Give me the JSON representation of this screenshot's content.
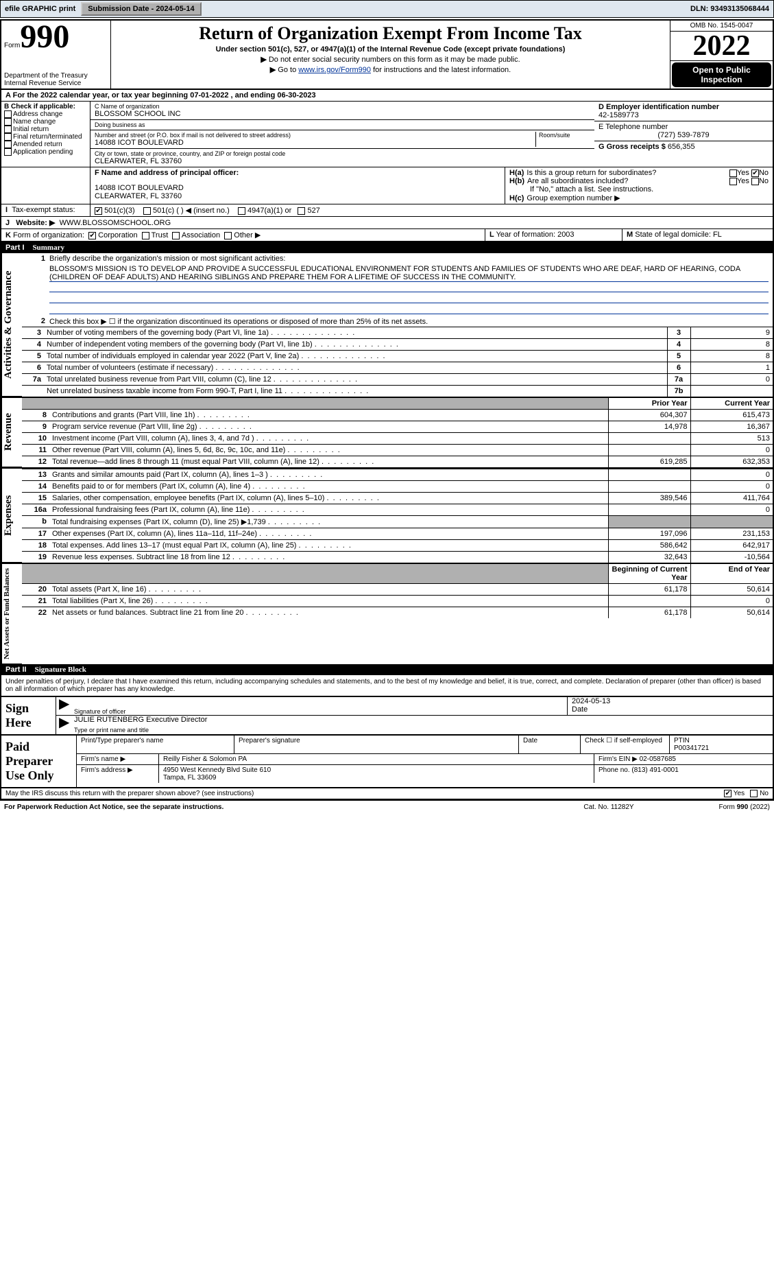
{
  "topbar": {
    "efile_label": "efile GRAPHIC print",
    "submission_button": "Submission Date - 2024-05-14",
    "dln": "DLN: 93493135068444"
  },
  "header": {
    "form_word": "Form",
    "form_number": "990",
    "title": "Return of Organization Exempt From Income Tax",
    "subtitle": "Under section 501(c), 527, or 4947(a)(1) of the Internal Revenue Code (except private foundations)",
    "note1": "Do not enter social security numbers on this form as it may be made public.",
    "note2_pre": "Go to ",
    "note2_link": "www.irs.gov/Form990",
    "note2_post": " for instructions and the latest information.",
    "dept": "Department of the Treasury\nInternal Revenue Service",
    "omb": "OMB No. 1545-0047",
    "tax_year": "2022",
    "open_public": "Open to Public Inspection"
  },
  "period": {
    "text_a": "For the 2022 calendar year, or tax year beginning 07-01-2022    , and ending 06-30-2023",
    "label_a": "A"
  },
  "section_b": {
    "header": "B Check if applicable:",
    "items": [
      "Address change",
      "Name change",
      "Initial return",
      "Final return/terminated",
      "Amended return",
      "Application pending"
    ]
  },
  "section_c": {
    "name_label": "C Name of organization",
    "name": "BLOSSOM SCHOOL INC",
    "dba_label": "Doing business as",
    "dba": "",
    "addr_label": "Number and street (or P.O. box if mail is not delivered to street address)",
    "room_label": "Room/suite",
    "addr": "14088 ICOT BOULEVARD",
    "city_label": "City or town, state or province, country, and ZIP or foreign postal code",
    "city": "CLEARWATER, FL  33760"
  },
  "section_d": {
    "ein_label": "D Employer identification number",
    "ein": "42-1589773",
    "phone_label": "E Telephone number",
    "phone": "(727) 539-7879",
    "gross_label": "G Gross receipts $",
    "gross": "656,355"
  },
  "section_f": {
    "label": "F Name and address of principal officer:",
    "addr1": "14088 ICOT BOULEVARD",
    "addr2": "CLEARWATER, FL  33760"
  },
  "section_h": {
    "a_label": "H(a)",
    "a_text": "Is this a group return for subordinates?",
    "b_label": "H(b)",
    "b_text": "Are all subordinates included?",
    "b_note": "If \"No,\" attach a list. See instructions.",
    "c_label": "H(c)",
    "c_text": "Group exemption number ▶",
    "yes": "Yes",
    "no": "No"
  },
  "row_i": {
    "label": "I",
    "text": "Tax-exempt status:",
    "opt1": "501(c)(3)",
    "opt2": "501(c) (  ) ◀ (insert no.)",
    "opt3": "4947(a)(1) or",
    "opt4": "527"
  },
  "row_j": {
    "label": "J",
    "text": "Website: ▶",
    "url": "WWW.BLOSSOMSCHOOL.ORG"
  },
  "row_k": {
    "label": "K",
    "text": "Form of organization:",
    "opts": [
      "Corporation",
      "Trust",
      "Association",
      "Other ▶"
    ],
    "l_label": "L",
    "l_text": "Year of formation: 2003",
    "m_label": "M",
    "m_text": "State of legal domicile: FL"
  },
  "part1": {
    "part": "Part I",
    "name": "Summary"
  },
  "summary": {
    "line1_label": "1",
    "line1_text": "Briefly describe the organization's mission or most significant activities:",
    "mission": "BLOSSOM'S MISSION IS TO DEVELOP AND PROVIDE A SUCCESSFUL EDUCATIONAL ENVIRONMENT FOR STUDENTS AND FAMILIES OF STUDENTS WHO ARE DEAF, HARD OF HEARING, CODA (CHILDREN OF DEAF ADULTS) AND HEARING SIBLINGS AND PREPARE THEM FOR A LIFETIME OF SUCCESS IN THE COMMUNITY.",
    "line2_label": "2",
    "line2_text": "Check this box ▶ ☐ if the organization discontinued its operations or disposed of more than 25% of its net assets.",
    "vtab1": "Activities & Governance",
    "vtab2": "Revenue",
    "vtab3": "Expenses",
    "vtab4": "Net Assets or Fund Balances"
  },
  "governance_rows": [
    {
      "n": "3",
      "label": "Number of voting members of the governing body (Part VI, line 1a)",
      "box": "3",
      "val": "9"
    },
    {
      "n": "4",
      "label": "Number of independent voting members of the governing body (Part VI, line 1b)",
      "box": "4",
      "val": "8"
    },
    {
      "n": "5",
      "label": "Total number of individuals employed in calendar year 2022 (Part V, line 2a)",
      "box": "5",
      "val": "8"
    },
    {
      "n": "6",
      "label": "Total number of volunteers (estimate if necessary)",
      "box": "6",
      "val": "1"
    },
    {
      "n": "7a",
      "label": "Total unrelated business revenue from Part VIII, column (C), line 12",
      "box": "7a",
      "val": "0"
    },
    {
      "n": "",
      "label": "Net unrelated business taxable income from Form 990-T, Part I, line 11",
      "box": "7b",
      "val": ""
    }
  ],
  "year_header": {
    "prior": "Prior Year",
    "current": "Current Year"
  },
  "revenue_rows": [
    {
      "n": "8",
      "label": "Contributions and grants (Part VIII, line 1h)",
      "prior": "604,307",
      "curr": "615,473"
    },
    {
      "n": "9",
      "label": "Program service revenue (Part VIII, line 2g)",
      "prior": "14,978",
      "curr": "16,367"
    },
    {
      "n": "10",
      "label": "Investment income (Part VIII, column (A), lines 3, 4, and 7d )",
      "prior": "",
      "curr": "513"
    },
    {
      "n": "11",
      "label": "Other revenue (Part VIII, column (A), lines 5, 6d, 8c, 9c, 10c, and 11e)",
      "prior": "",
      "curr": "0"
    },
    {
      "n": "12",
      "label": "Total revenue—add lines 8 through 11 (must equal Part VIII, column (A), line 12)",
      "prior": "619,285",
      "curr": "632,353"
    }
  ],
  "expense_rows": [
    {
      "n": "13",
      "label": "Grants and similar amounts paid (Part IX, column (A), lines 1–3 )",
      "prior": "",
      "curr": "0"
    },
    {
      "n": "14",
      "label": "Benefits paid to or for members (Part IX, column (A), line 4)",
      "prior": "",
      "curr": "0"
    },
    {
      "n": "15",
      "label": "Salaries, other compensation, employee benefits (Part IX, column (A), lines 5–10)",
      "prior": "389,546",
      "curr": "411,764"
    },
    {
      "n": "16a",
      "label": "Professional fundraising fees (Part IX, column (A), line 11e)",
      "prior": "",
      "curr": "0"
    },
    {
      "n": "b",
      "label": "Total fundraising expenses (Part IX, column (D), line 25) ▶1,739",
      "prior": "shade",
      "curr": "shade"
    },
    {
      "n": "17",
      "label": "Other expenses (Part IX, column (A), lines 11a–11d, 11f–24e)",
      "prior": "197,096",
      "curr": "231,153"
    },
    {
      "n": "18",
      "label": "Total expenses. Add lines 13–17 (must equal Part IX, column (A), line 25)",
      "prior": "586,642",
      "curr": "642,917"
    },
    {
      "n": "19",
      "label": "Revenue less expenses. Subtract line 18 from line 12",
      "prior": "32,643",
      "curr": "-10,564"
    }
  ],
  "na_header": {
    "prior": "Beginning of Current Year",
    "current": "End of Year"
  },
  "na_rows": [
    {
      "n": "20",
      "label": "Total assets (Part X, line 16)",
      "prior": "61,178",
      "curr": "50,614"
    },
    {
      "n": "21",
      "label": "Total liabilities (Part X, line 26)",
      "prior": "",
      "curr": "0"
    },
    {
      "n": "22",
      "label": "Net assets or fund balances. Subtract line 21 from line 20",
      "prior": "61,178",
      "curr": "50,614"
    }
  ],
  "part2": {
    "part": "Part II",
    "name": "Signature Block"
  },
  "sig": {
    "penalty": "Under penalties of perjury, I declare that I have examined this return, including accompanying schedules and statements, and to the best of my knowledge and belief, it is true, correct, and complete. Declaration of preparer (other than officer) is based on all information of which preparer has any knowledge.",
    "sign_here": "Sign Here",
    "sig_officer_caption": "Signature of officer",
    "date_caption": "Date",
    "date": "2024-05-13",
    "officer_name": "JULIE RUTENBERG  Executive Director",
    "name_caption": "Type or print name and title"
  },
  "prep": {
    "label": "Paid Preparer Use Only",
    "h_print": "Print/Type preparer's name",
    "h_sig": "Preparer's signature",
    "h_date": "Date",
    "h_check": "Check ☐ if self-employed",
    "h_ptin_label": "PTIN",
    "h_ptin": "P00341721",
    "firm_name_label": "Firm's name    ▶",
    "firm_name": "Reilly Fisher & Solomon PA",
    "firm_ein_label": "Firm's EIN ▶",
    "firm_ein": "02-0587685",
    "firm_addr_label": "Firm's address ▶",
    "firm_addr1": "4950 West Kennedy Blvd Suite 610",
    "firm_addr2": "Tampa, FL  33609",
    "phone_label": "Phone no.",
    "phone": "(813) 491-0001"
  },
  "discuss": {
    "text": "May the IRS discuss this return with the preparer shown above? (see instructions)",
    "yes": "Yes",
    "no": "No"
  },
  "footer": {
    "left": "For Paperwork Reduction Act Notice, see the separate instructions.",
    "mid": "Cat. No. 11282Y",
    "right_pre": "Form ",
    "right_form": "990",
    "right_post": " (2022)"
  }
}
